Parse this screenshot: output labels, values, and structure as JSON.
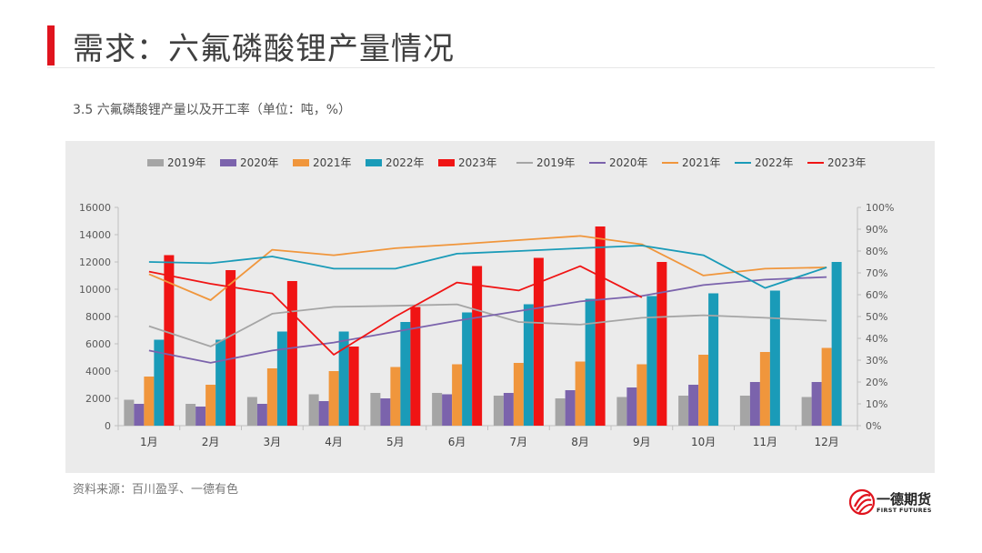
{
  "header": {
    "title": "需求：六氟磷酸锂产量情况",
    "subtitle": "3.5 六氟磷酸锂产量以及开工率（单位：吨，%）"
  },
  "footer": {
    "source": "资料来源：百川盈孚、一德有色",
    "logo_text": "一德期货",
    "logo_sub": "FIRST FUTURES"
  },
  "colors": {
    "accent": "#e0141e",
    "y2019": "#a5a5a5",
    "y2020": "#7b63ac",
    "y2021": "#f0963c",
    "y2022": "#1a9bb8",
    "y2023": "#f01414"
  },
  "chart_data": {
    "type": "bar",
    "combo": "bar+line",
    "title": "",
    "categories": [
      "1月",
      "2月",
      "3月",
      "4月",
      "5月",
      "6月",
      "7月",
      "8月",
      "9月",
      "10月",
      "11月",
      "12月"
    ],
    "ylim": [
      0,
      16000
    ],
    "yticks": [
      0,
      2000,
      4000,
      6000,
      8000,
      10000,
      12000,
      14000,
      16000
    ],
    "y2lim": [
      0,
      100
    ],
    "y2ticks": [
      "0%",
      "10%",
      "20%",
      "30%",
      "40%",
      "50%",
      "60%",
      "70%",
      "80%",
      "90%",
      "100%"
    ],
    "legend_position": "top",
    "bar_series": [
      {
        "name": "2019年",
        "color": "#a5a5a5",
        "values": [
          1900,
          1600,
          2100,
          2300,
          2400,
          2400,
          2200,
          2000,
          2100,
          2200,
          2200,
          2100
        ]
      },
      {
        "name": "2020年",
        "color": "#7b63ac",
        "values": [
          1600,
          1400,
          1600,
          1800,
          2000,
          2300,
          2400,
          2600,
          2800,
          3000,
          3200,
          3200
        ]
      },
      {
        "name": "2021年",
        "color": "#f0963c",
        "values": [
          3600,
          3000,
          4200,
          4000,
          4300,
          4500,
          4600,
          4700,
          4500,
          5200,
          5400,
          5700
        ]
      },
      {
        "name": "2022年",
        "color": "#1a9bb8",
        "values": [
          6300,
          6300,
          6900,
          6900,
          7600,
          8300,
          8900,
          9300,
          9500,
          9700,
          9900,
          12000
        ]
      },
      {
        "name": "2023年",
        "color": "#f01414",
        "values": [
          12500,
          11400,
          10600,
          5800,
          8700,
          11700,
          12300,
          14600,
          12000,
          null,
          null,
          null
        ]
      }
    ],
    "line_series": [
      {
        "name": "2019年",
        "color": "#a5a5a5",
        "values": [
          45.6,
          36.3,
          51.3,
          54.4,
          54.9,
          55.6,
          47.5,
          46.3,
          49.4,
          50.6,
          49.4,
          48.1
        ]
      },
      {
        "name": "2020年",
        "color": "#7b63ac",
        "values": [
          34.4,
          28.8,
          34.4,
          38.1,
          43.1,
          48.1,
          52.5,
          56.9,
          59.4,
          64.4,
          66.9,
          68.1
        ]
      },
      {
        "name": "2021年",
        "color": "#f0963c",
        "values": [
          69.4,
          57.5,
          80.6,
          78.1,
          81.3,
          83.1,
          85.0,
          86.9,
          83.1,
          68.8,
          71.9,
          72.5
        ]
      },
      {
        "name": "2022年",
        "color": "#1a9bb8",
        "values": [
          75.0,
          74.4,
          77.5,
          71.9,
          71.9,
          78.8,
          80.0,
          81.3,
          82.5,
          78.1,
          63.1,
          72.5
        ]
      },
      {
        "name": "2023年",
        "color": "#f01414",
        "values": [
          70.6,
          65.0,
          60.6,
          32.5,
          50.0,
          65.6,
          61.9,
          73.1,
          58.8,
          null,
          null,
          null
        ]
      }
    ]
  }
}
